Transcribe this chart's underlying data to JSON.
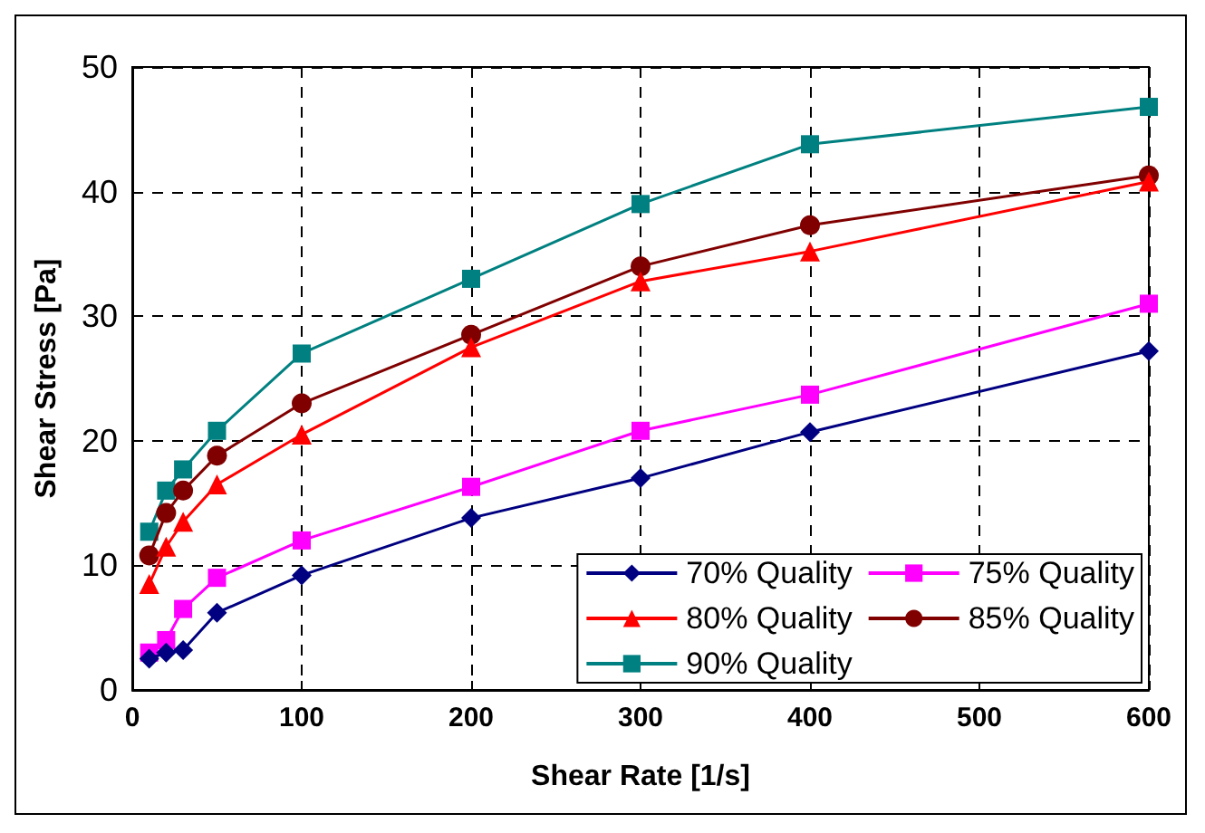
{
  "chart_data": {
    "type": "line",
    "xlabel": "Shear Rate [1/s]",
    "ylabel": "Shear Stress [Pa]",
    "xlim": [
      0,
      600
    ],
    "xticks": [
      0,
      100,
      200,
      300,
      400,
      500,
      600
    ],
    "ylim": [
      0,
      50
    ],
    "yticks": [
      0,
      10,
      20,
      30,
      40,
      50
    ],
    "grid": true,
    "legend": "bottom right",
    "x": [
      10,
      20,
      30,
      50,
      100,
      200,
      300,
      400,
      600
    ],
    "series": [
      {
        "name": "70% Quality",
        "color": "#000080",
        "marker": "diamond",
        "values": [
          2.5,
          3,
          3.2,
          6.2,
          9.2,
          13.8,
          17,
          20.7,
          27.2
        ]
      },
      {
        "name": "75% Quality",
        "color": "#ff00ff",
        "marker": "square",
        "values": [
          3,
          4,
          6.5,
          9,
          12,
          16.3,
          20.8,
          23.7,
          31
        ]
      },
      {
        "name": "80% Quality",
        "color": "#ff0000",
        "marker": "triangle",
        "values": [
          8.5,
          11.5,
          13.5,
          16.5,
          20.5,
          27.5,
          32.8,
          35.2,
          40.8
        ]
      },
      {
        "name": "85% Quality",
        "color": "#800000",
        "marker": "circle",
        "values": [
          10.8,
          14.2,
          16,
          18.8,
          23,
          28.5,
          34,
          37.3,
          41.3
        ]
      },
      {
        "name": "90% Quality",
        "color": "#008080",
        "marker": "square",
        "values": [
          12.7,
          16,
          17.7,
          20.8,
          27,
          33,
          39,
          43.8,
          46.8
        ]
      }
    ]
  }
}
